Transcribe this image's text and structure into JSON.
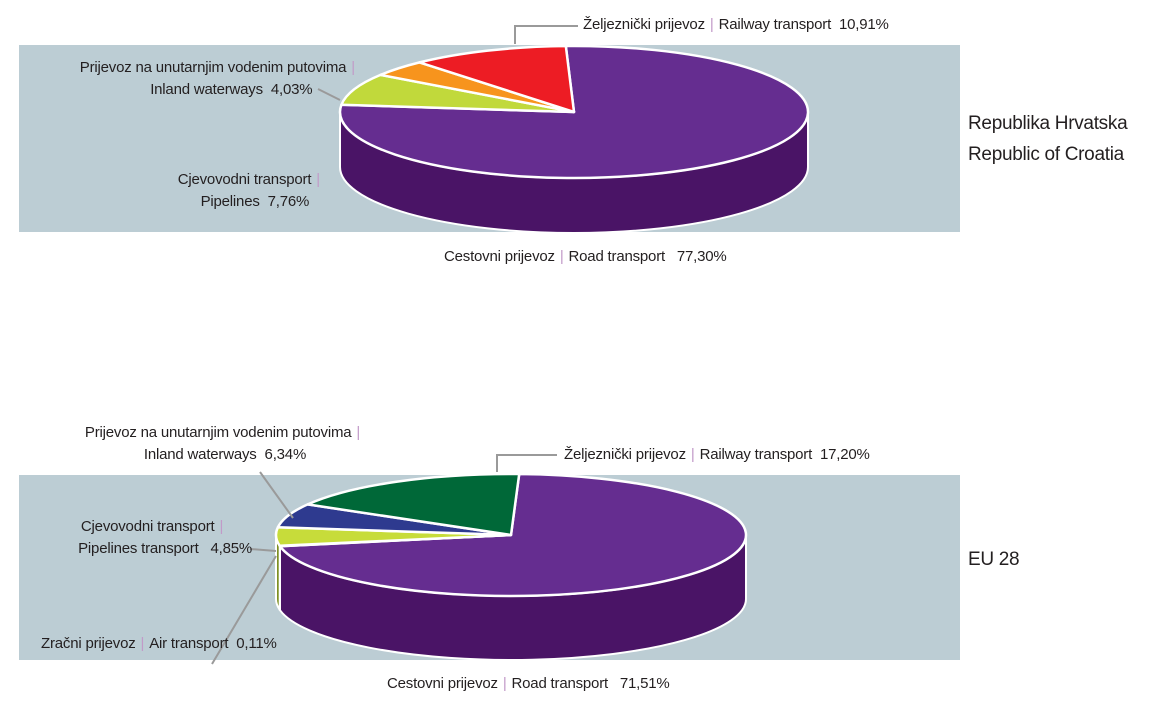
{
  "chart_data": [
    {
      "type": "pie",
      "title": "Republika Hrvatska | Republic of Croatia",
      "region": [
        "Republika Hrvatska",
        "Republic of Croatia"
      ],
      "slices": [
        {
          "hr": "Cestovni prijevoz",
          "en": "Road transport",
          "value": 77.3,
          "label": "77,30%",
          "color": "#652d90",
          "side": "#4a1466"
        },
        {
          "hr": "Cjevovodni transport",
          "en": "Pipelines",
          "value": 7.76,
          "label": "7,76%",
          "color": "#c1d93b",
          "side": "#6f8522"
        },
        {
          "hr": "Prijevoz na unutarnjim vodenim putovima",
          "en": "Inland waterways",
          "value": 4.03,
          "label": "4,03%",
          "color": "#f7941d",
          "side": "#b86a10"
        },
        {
          "hr": "Željeznički prijevoz",
          "en": "Railway transport",
          "value": 10.91,
          "label": "10,91%",
          "color": "#ed1c24",
          "side": "#a81218"
        }
      ]
    },
    {
      "type": "pie",
      "title": "EU 28",
      "region": [
        "EU 28"
      ],
      "slices": [
        {
          "hr": "Cestovni prijevoz",
          "en": "Road transport",
          "value": 71.51,
          "label": "71,51%",
          "color": "#652d90",
          "side": "#4a1466"
        },
        {
          "hr": "Zračni prijevoz",
          "en": "Air transport",
          "value": 0.11,
          "label": "0,11%",
          "color": "#888888",
          "side": "#555555"
        },
        {
          "hr": "Cjevovodni transport",
          "en": "Pipelines transport",
          "value": 4.85,
          "label": "4,85%",
          "color": "#c7dc3a",
          "side": "#7d8f22"
        },
        {
          "hr": "Prijevoz na unutarnjim vodenim putovima",
          "en": "Inland waterways",
          "value": 6.34,
          "label": "6,34%",
          "color": "#2e3a8f",
          "side": "#1d2660"
        },
        {
          "hr": "Željeznički prijevoz",
          "en": "Railway transport",
          "value": 17.2,
          "label": "17,20%",
          "color": "#006838",
          "side": "#004425"
        }
      ]
    }
  ],
  "colors": {
    "panel": "#bccdd4",
    "leader": "#9a9a9a",
    "separator": "#c29ac8"
  }
}
